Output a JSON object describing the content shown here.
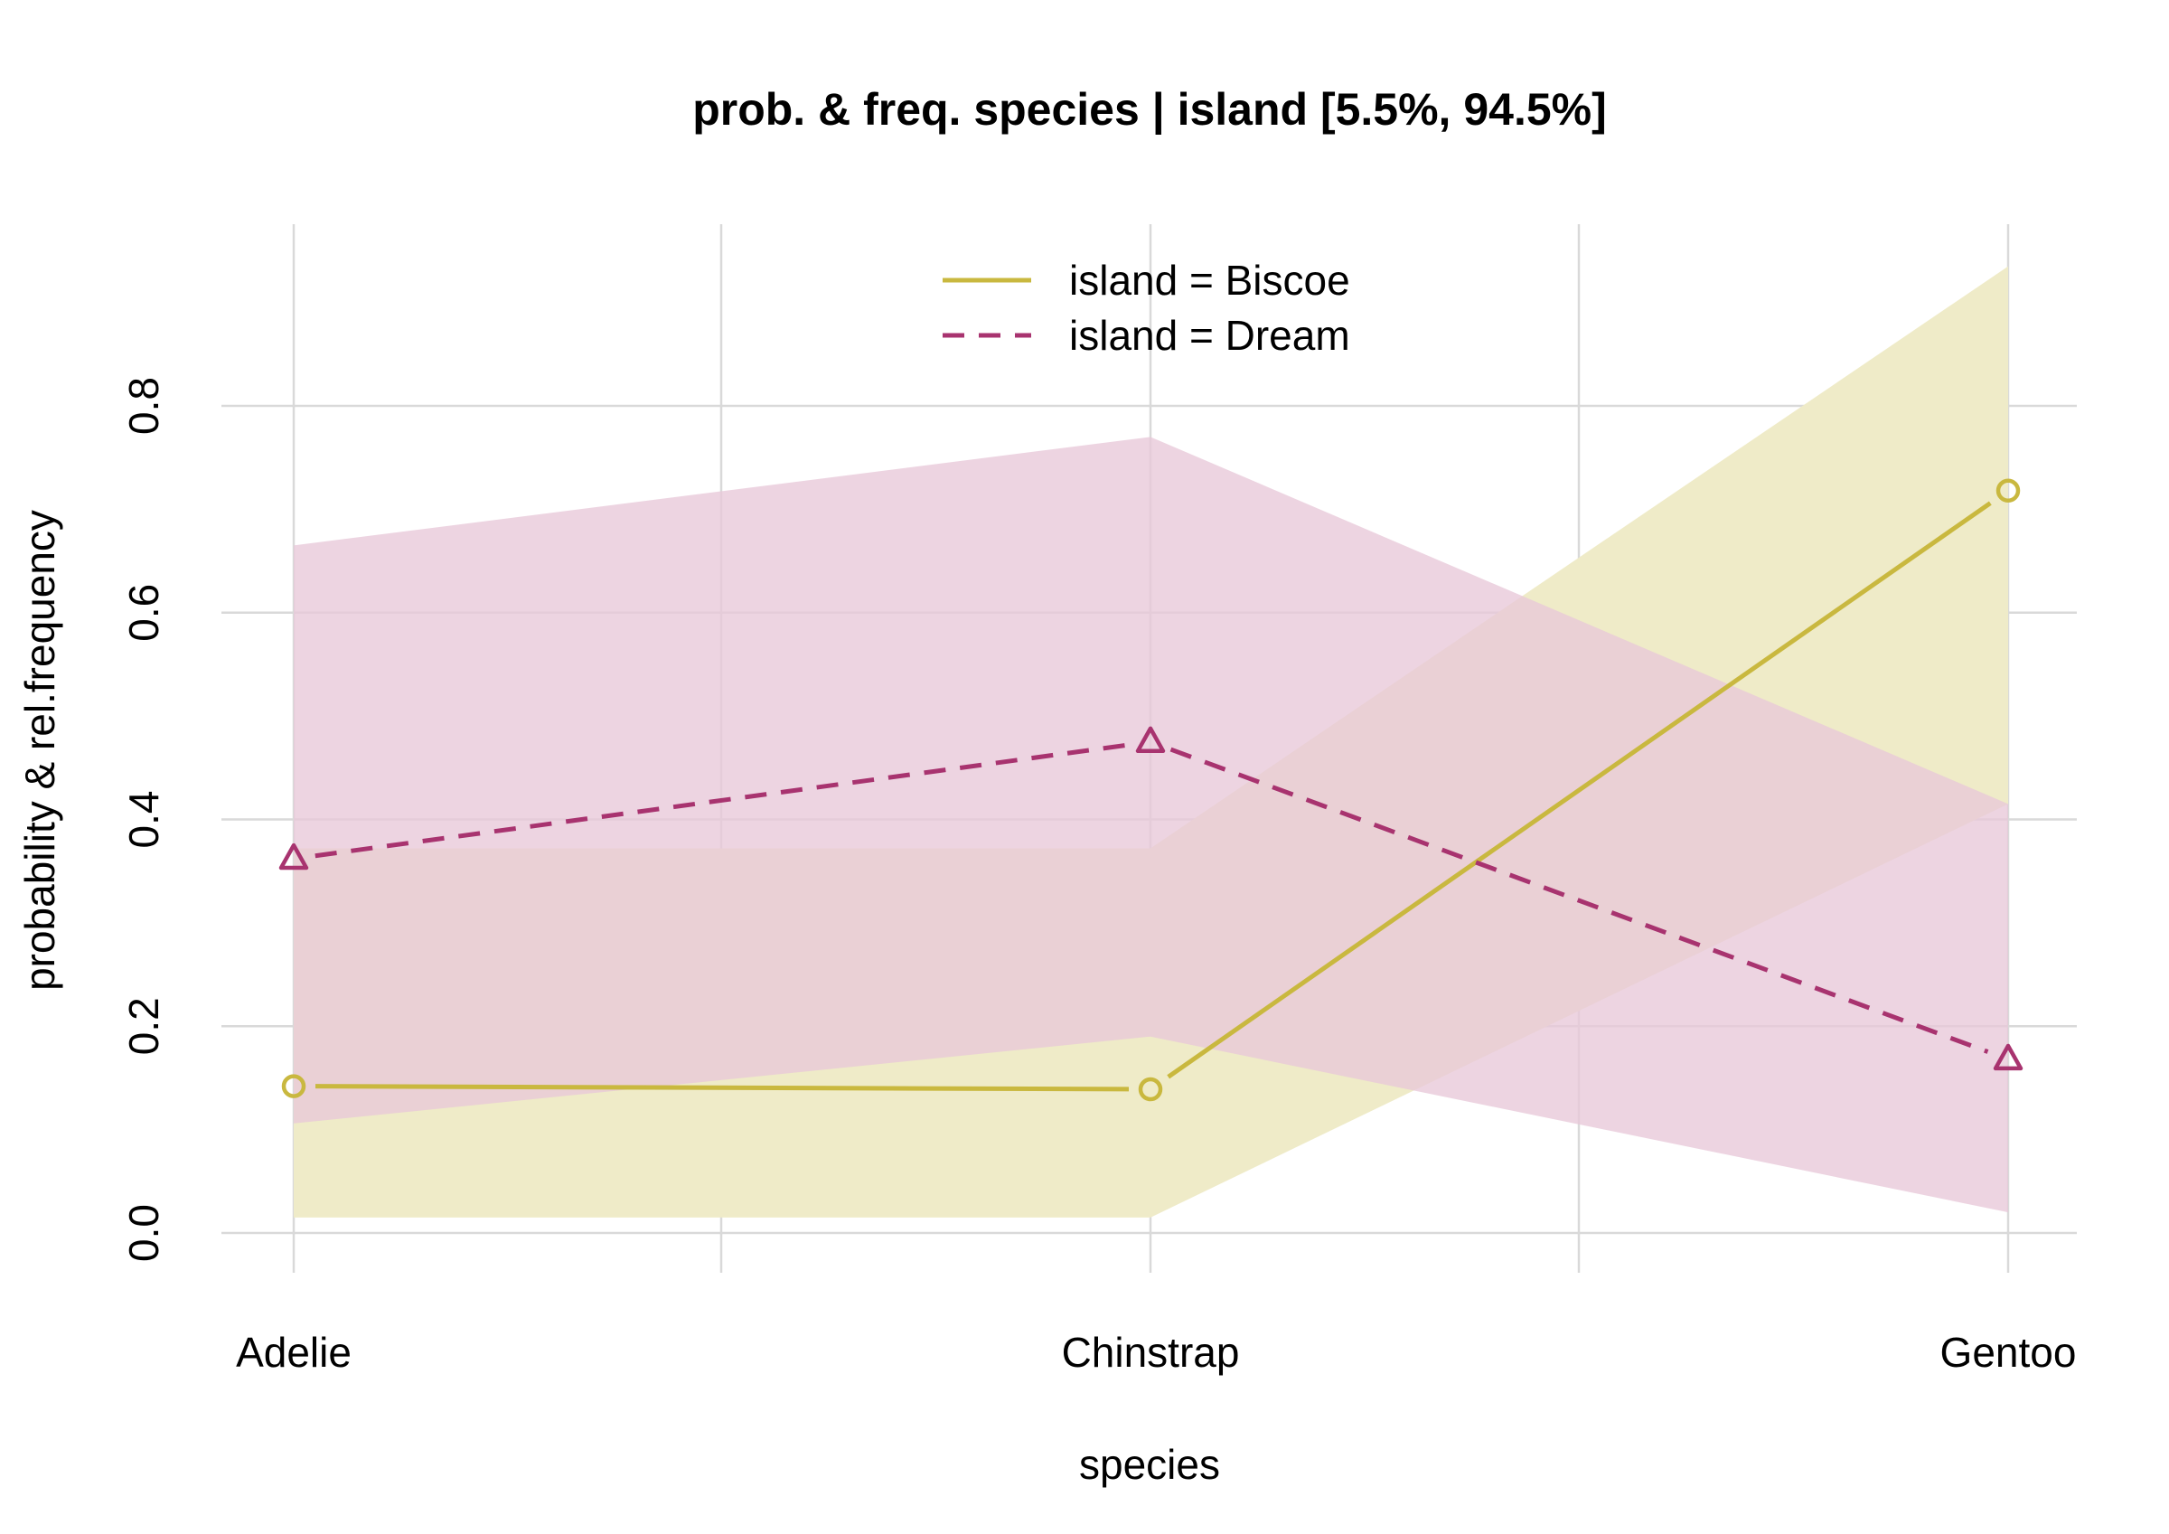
{
  "chart_data": {
    "type": "line",
    "title": "prob. & freq.  species | island  [5.5%, 94.5%]",
    "xlabel": "species",
    "ylabel": "probability & rel.frequency",
    "categories": [
      "Adelie",
      "Chinstrap",
      "Gentoo"
    ],
    "ylim": [
      0,
      0.95
    ],
    "yticks": [
      0.0,
      0.2,
      0.4,
      0.6,
      0.8
    ],
    "ytick_labels": [
      "0.0",
      "0.2",
      "0.4",
      "0.6",
      "0.8"
    ],
    "grid": true,
    "legend_position": "top-center",
    "series": [
      {
        "name": "island = Biscoe",
        "color": "#C9B83F",
        "band_color": "#EFEBC8",
        "line_style": "solid",
        "marker": "circle",
        "values": [
          0.142,
          0.139,
          0.718
        ],
        "lower": [
          0.015,
          0.015,
          0.415
        ],
        "upper": [
          0.372,
          0.372,
          0.935
        ]
      },
      {
        "name": "island = Dream",
        "color": "#A8336F",
        "band_color": "#E8C8D8",
        "line_style": "dashed",
        "marker": "triangle",
        "values": [
          0.362,
          0.475,
          0.168
        ],
        "lower": [
          0.106,
          0.19,
          0.02
        ],
        "upper": [
          0.665,
          0.77,
          0.415
        ]
      }
    ]
  }
}
